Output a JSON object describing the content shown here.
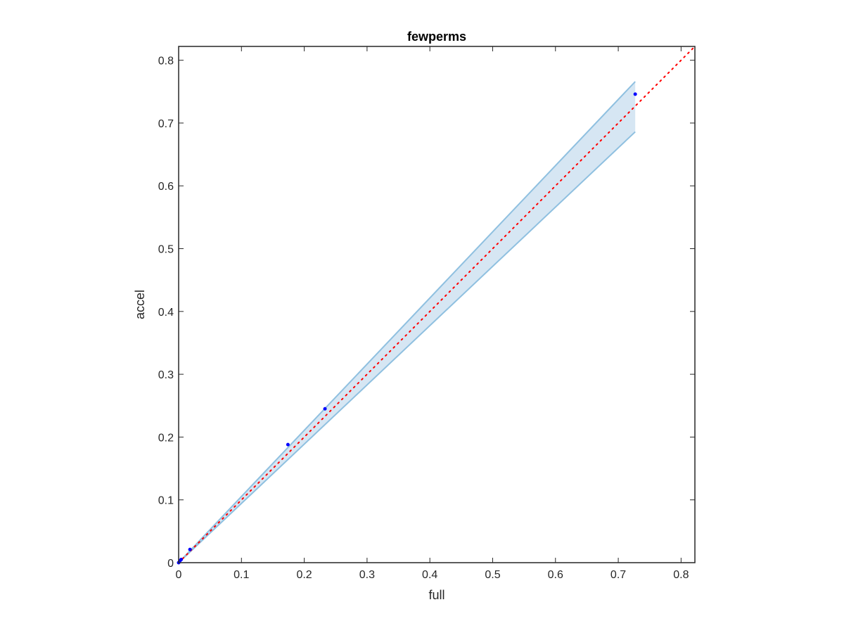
{
  "chart_data": {
    "type": "scatter",
    "title": "fewperms",
    "xlabel": "full",
    "ylabel": "accel",
    "xlim": [
      0,
      0.822
    ],
    "ylim": [
      0,
      0.822
    ],
    "xticks": [
      "0",
      "0.1",
      "0.2",
      "0.3",
      "0.4",
      "0.5",
      "0.6",
      "0.7",
      "0.8"
    ],
    "yticks": [
      "0",
      "0.1",
      "0.2",
      "0.3",
      "0.4",
      "0.5",
      "0.6",
      "0.7",
      "0.8"
    ],
    "grid": false,
    "points": {
      "x": [
        0,
        0.002,
        0.004,
        0.018,
        0.174,
        0.233,
        0.727
      ],
      "y": [
        0,
        0.003,
        0.005,
        0.021,
        0.188,
        0.245,
        0.746
      ],
      "color": "#0000ff"
    },
    "band": {
      "x": [
        0,
        0.727
      ],
      "upper": [
        0,
        0.766
      ],
      "lower": [
        0,
        0.686
      ],
      "fill": "#d6e6f3",
      "edge": "#8fc0e0"
    },
    "reference_line": {
      "x": [
        0,
        0.822
      ],
      "y": [
        0,
        0.822
      ],
      "color": "#ff0000",
      "style": "dotted"
    }
  }
}
